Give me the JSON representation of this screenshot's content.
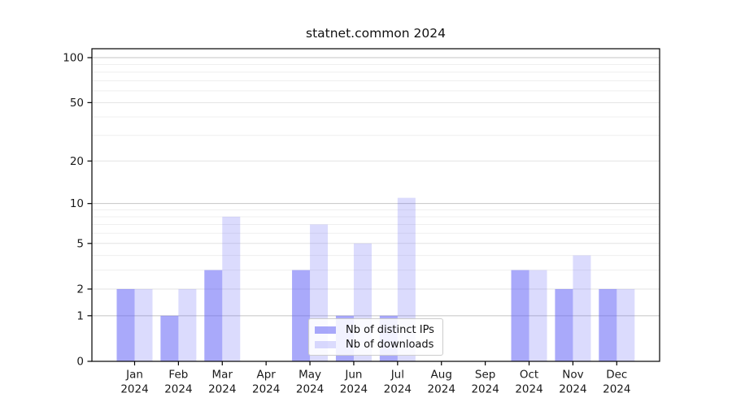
{
  "chart_data": {
    "type": "bar",
    "title": "statnet.common 2024",
    "categories": [
      "Jan",
      "Feb",
      "Mar",
      "Apr",
      "May",
      "Jun",
      "Jul",
      "Aug",
      "Sep",
      "Oct",
      "Nov",
      "Dec"
    ],
    "x_tick_year": "2024",
    "series": [
      {
        "name": "Nb of distinct IPs",
        "color": "rgba(98,98,246,0.55)",
        "values": [
          2,
          1,
          3,
          0,
          3,
          1,
          1,
          0,
          0,
          3,
          2,
          2
        ]
      },
      {
        "name": "Nb of downloads",
        "color": "rgba(98,98,246,0.23)",
        "values": [
          2,
          2,
          8,
          0,
          7,
          5,
          11,
          0,
          0,
          3,
          4,
          2
        ]
      }
    ],
    "y_axis": {
      "scale": "log10(1+v)",
      "ticks": [
        0,
        1,
        2,
        5,
        10,
        20,
        50,
        100
      ],
      "range": [
        0,
        100
      ]
    },
    "grid": {
      "minor_values": [
        3,
        4,
        6,
        7,
        8,
        9,
        30,
        40,
        60,
        70,
        80,
        90
      ],
      "emphasis_values": [
        1,
        10,
        100
      ],
      "minor_color": "#efefef",
      "major_color": "#e3e3e3",
      "emphasis_color": "#c4c4c4"
    },
    "legend": {
      "position": "lower center"
    },
    "colors": {
      "axis": "#000000",
      "tick_text": "#1a1a1a",
      "background": "#ffffff"
    }
  }
}
